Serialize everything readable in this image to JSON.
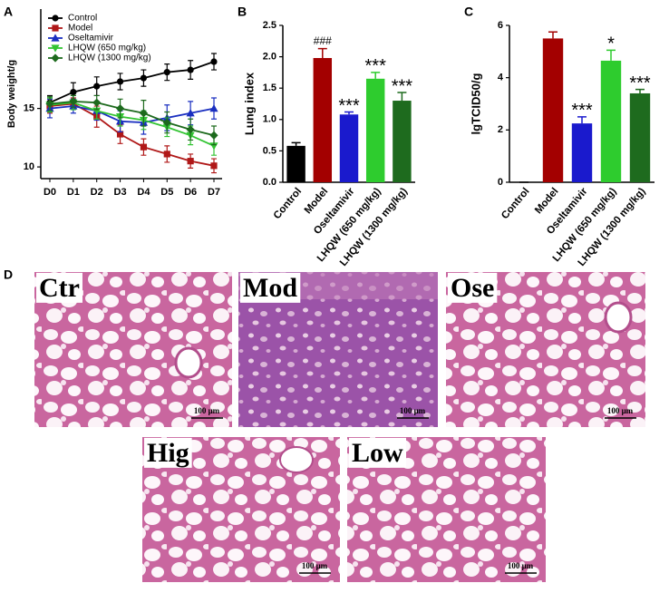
{
  "chart_data": [
    {
      "type": "line",
      "panel": "A",
      "ylabel": "Body weight/g",
      "categories": [
        "D0",
        "D1",
        "D2",
        "D3",
        "D4",
        "D5",
        "D6",
        "D7"
      ],
      "ylim": [
        9,
        23.5
      ],
      "yticks": [
        10,
        15
      ],
      "series": [
        {
          "name": "Control",
          "color": "#000000",
          "marker": "circle",
          "values": [
            15.5,
            16.4,
            16.9,
            17.3,
            17.6,
            18.1,
            18.3,
            19.0
          ],
          "errors": [
            0.6,
            0.8,
            0.8,
            0.7,
            0.7,
            0.7,
            0.8,
            0.7
          ]
        },
        {
          "name": "Model",
          "color": "#b01818",
          "marker": "square",
          "values": [
            15.2,
            15.4,
            14.3,
            12.8,
            11.7,
            11.1,
            10.5,
            10.1
          ],
          "errors": [
            0.6,
            0.5,
            0.9,
            0.8,
            0.7,
            0.7,
            0.6,
            0.6
          ]
        },
        {
          "name": "Oseltamivir",
          "color": "#1a2fc0",
          "marker": "triangle",
          "values": [
            15.0,
            15.2,
            14.8,
            13.9,
            13.8,
            14.2,
            14.6,
            15.0
          ],
          "errors": [
            0.8,
            0.6,
            0.8,
            0.9,
            1.0,
            1.1,
            1.0,
            0.9
          ]
        },
        {
          "name": "LHQW (650 mg/kg)",
          "color": "#33c433",
          "marker": "down",
          "values": [
            15.3,
            15.5,
            14.8,
            14.3,
            14.0,
            13.4,
            12.7,
            11.8
          ],
          "errors": [
            0.6,
            0.6,
            0.7,
            0.8,
            0.8,
            0.8,
            0.8,
            0.8
          ]
        },
        {
          "name": "LHQW (1300 mg/kg)",
          "color": "#1d6a1d",
          "marker": "diamond",
          "values": [
            15.4,
            15.6,
            15.5,
            15.0,
            14.6,
            13.8,
            13.2,
            12.7
          ],
          "errors": [
            0.6,
            0.5,
            0.6,
            0.8,
            1.1,
            0.9,
            0.9,
            0.8
          ]
        }
      ]
    },
    {
      "type": "bar",
      "panel": "B",
      "ylabel": "Lung index",
      "categories": [
        "Control",
        "Model",
        "Oseltamivir",
        "LHQW (650 mg/kg)",
        "LHQW (1300 mg/kg)"
      ],
      "values": [
        0.58,
        1.98,
        1.08,
        1.65,
        1.3
      ],
      "errors": [
        0.05,
        0.15,
        0.04,
        0.1,
        0.13
      ],
      "colors": [
        "#000000",
        "#a30000",
        "#1a1acd",
        "#2ecc2e",
        "#1e6b1e"
      ],
      "annotations": [
        null,
        "###",
        "***",
        "***",
        "***"
      ],
      "ylim": [
        0,
        2.5
      ],
      "yticks": [
        {
          "value": 0,
          "label": "0.0"
        },
        0.5,
        {
          "value": 1,
          "label": "1.0"
        },
        1.5,
        {
          "value": 2,
          "label": "2.0"
        },
        2.5
      ]
    },
    {
      "type": "bar",
      "panel": "C",
      "ylabel": "lgTCID50/g",
      "categories": [
        "Control",
        "Model",
        "Oseltamivir",
        "LHQW (650 mg/kg)",
        "LHQW (1300 mg/kg)"
      ],
      "values": [
        0,
        5.5,
        2.25,
        4.65,
        3.4
      ],
      "errors": [
        0,
        0.25,
        0.25,
        0.4,
        0.15
      ],
      "colors": [
        "#000000",
        "#a30000",
        "#1a1acd",
        "#2ecc2e",
        "#1e6b1e"
      ],
      "annotations": [
        null,
        null,
        "***",
        "*",
        "***"
      ],
      "ylim": [
        0,
        6
      ],
      "yticks": [
        0,
        2,
        4,
        6
      ]
    }
  ],
  "histology": {
    "panel": "D",
    "images": [
      {
        "label": "Ctr",
        "scale": "100 μm"
      },
      {
        "label": "Mod",
        "scale": "100 μm"
      },
      {
        "label": "Ose",
        "scale": "100 μm"
      },
      {
        "label": "Hig",
        "scale": "100 μm"
      },
      {
        "label": "Low",
        "scale": "100 μm"
      }
    ]
  }
}
